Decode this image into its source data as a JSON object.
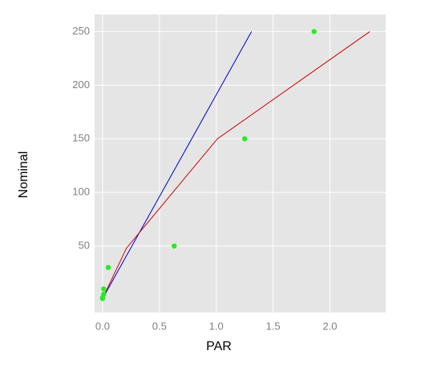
{
  "chart_data": {
    "type": "scatter",
    "x_label": "PAR",
    "y_label": "Nominal",
    "xlim": [
      -0.07,
      2.49
    ],
    "ylim": [
      -12,
      266
    ],
    "xticks": [
      {
        "value": 0,
        "label": "0.0"
      },
      0.5,
      {
        "value": 1,
        "label": "1.0"
      },
      1.5,
      {
        "value": 2,
        "label": "2.0"
      }
    ],
    "yticks": [
      50,
      100,
      150,
      200,
      250
    ],
    "grid": true,
    "series": [
      {
        "color": "#0000cc",
        "mode": "lines",
        "x": [
          0,
          1.31
        ],
        "values": [
          1,
          250
        ]
      },
      {
        "color": "#cc0000",
        "mode": "lines",
        "x": [
          0,
          0.21,
          1.01,
          2.35
        ],
        "values": [
          1,
          48,
          150,
          250
        ]
      },
      {
        "color": "#22ee22",
        "mode": "markers",
        "x": [
          1.86,
          1.25,
          0.63,
          0.05,
          0.01,
          0.01,
          0.0,
          0.0
        ],
        "values": [
          250,
          150,
          50,
          30,
          10,
          5,
          2,
          1
        ]
      }
    ]
  }
}
